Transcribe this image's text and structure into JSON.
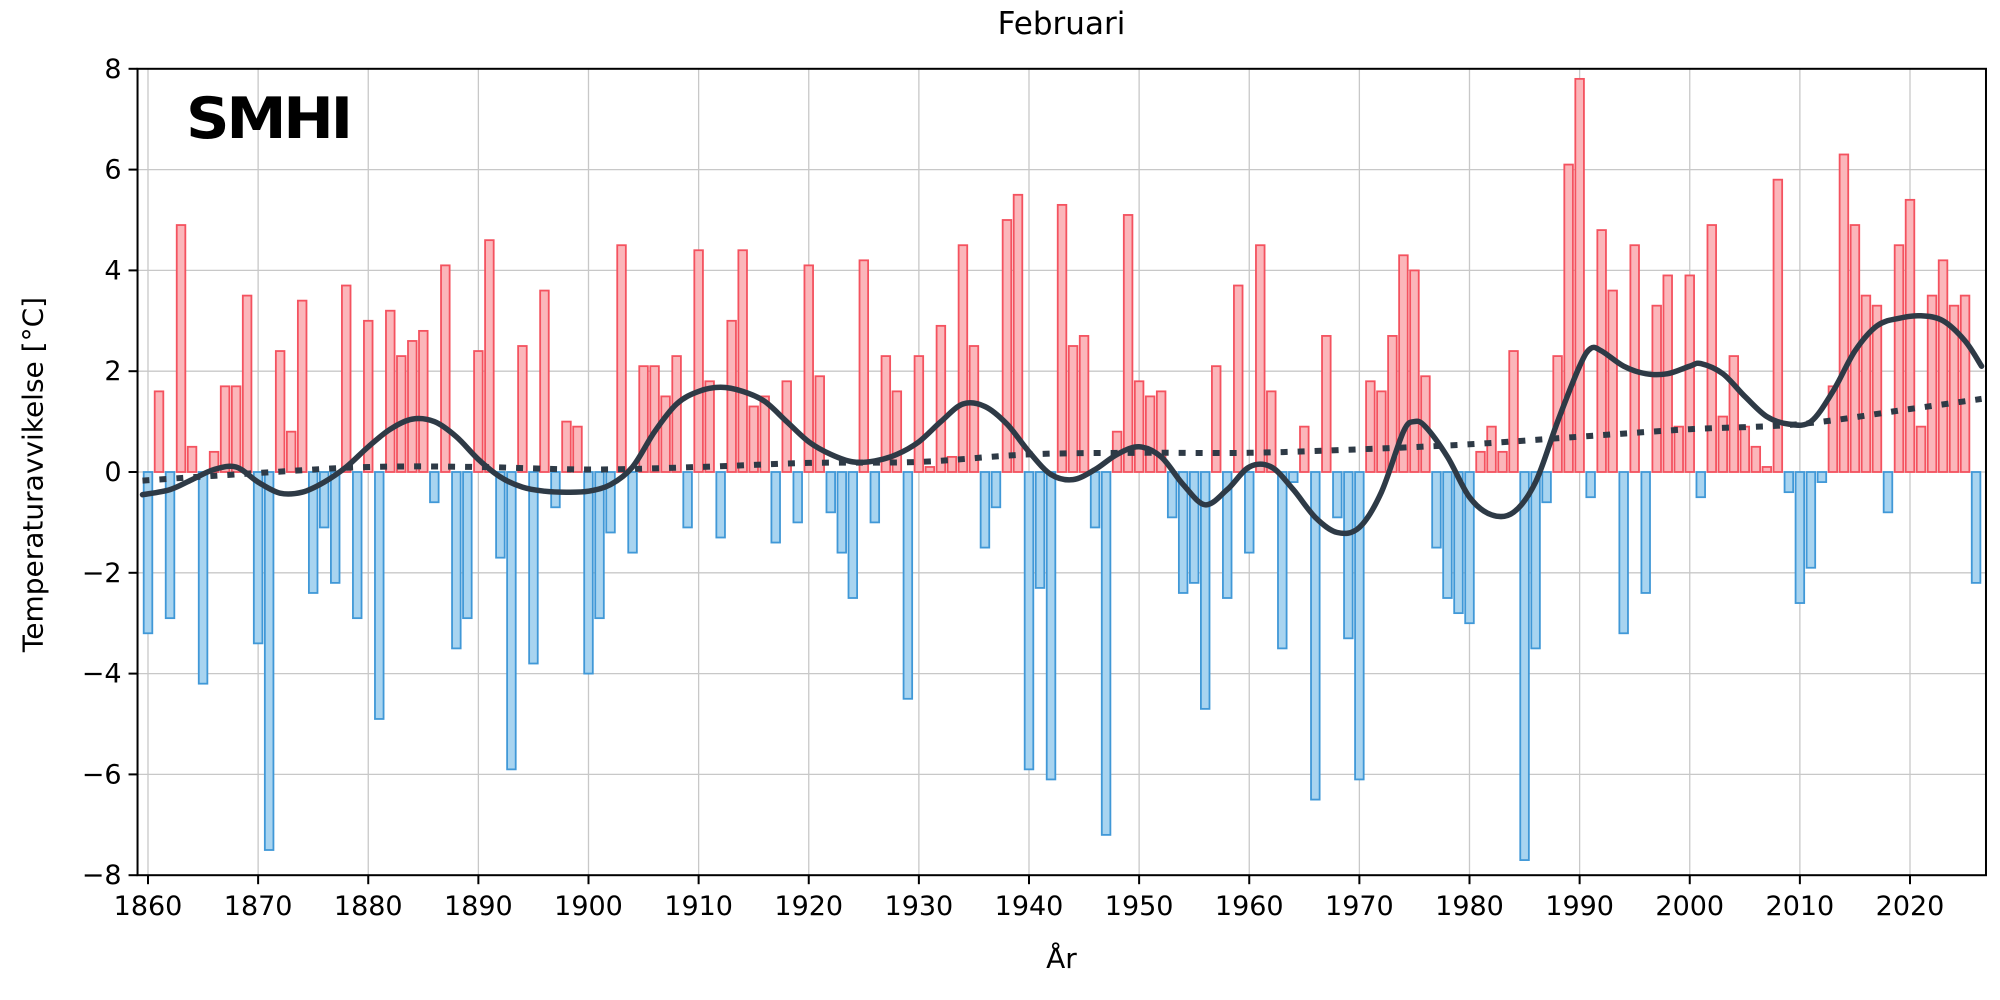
{
  "title": "Februari",
  "logo_text": "SMHI",
  "colors": {
    "positive_fill": "#FBB6BA",
    "positive_edge": "#F4525F",
    "negative_fill": "#A8D4F0",
    "negative_edge": "#4098D7",
    "line": "#2E3A46",
    "grid": "#C8C8C8",
    "spine": "#000000",
    "background": "#FFFFFF"
  },
  "chart_data": {
    "type": "bar",
    "title": "Februari",
    "xlabel": "År",
    "ylabel": "Temperaturavvikelse [°C]",
    "ylim": [
      -8,
      8
    ],
    "xlim": [
      1859.05,
      2026.9
    ],
    "grid": true,
    "yticks": [
      8,
      6,
      4,
      2,
      0,
      -2,
      -4,
      -6,
      -8
    ],
    "xticks": [
      1860,
      1870,
      1880,
      1890,
      1900,
      1910,
      1920,
      1930,
      1940,
      1950,
      1960,
      1970,
      1980,
      1990,
      2000,
      2010,
      2020
    ],
    "start_year": 1860,
    "end_year": 2026,
    "values": [
      -3.2,
      1.6,
      -2.9,
      4.9,
      0.5,
      -4.2,
      0.4,
      1.7,
      1.7,
      3.5,
      -3.4,
      -7.5,
      2.4,
      0.8,
      3.4,
      -2.4,
      -1.1,
      -2.2,
      3.7,
      -2.9,
      3.0,
      -4.9,
      3.2,
      2.3,
      2.6,
      2.8,
      -0.6,
      4.1,
      -3.5,
      -2.9,
      2.4,
      4.6,
      -1.7,
      -5.9,
      2.5,
      -3.8,
      3.6,
      -0.7,
      1.0,
      0.9,
      -4.0,
      -2.9,
      -1.2,
      4.5,
      -1.6,
      2.1,
      2.1,
      1.5,
      2.3,
      -1.1,
      4.4,
      1.8,
      -1.3,
      3.0,
      4.4,
      1.3,
      1.5,
      -1.4,
      1.8,
      -1.0,
      4.1,
      1.9,
      -0.8,
      -1.6,
      -2.5,
      4.2,
      -1.0,
      2.3,
      1.6,
      -4.5,
      2.3,
      0.1,
      2.9,
      0.3,
      4.5,
      2.5,
      -1.5,
      -0.7,
      5.0,
      5.5,
      -5.9,
      -2.3,
      -6.1,
      5.3,
      2.5,
      2.7,
      -1.1,
      -7.2,
      0.8,
      5.1,
      1.8,
      1.5,
      1.6,
      -0.9,
      -2.4,
      -2.2,
      -4.7,
      2.1,
      -2.5,
      3.7,
      -1.6,
      4.5,
      1.6,
      -3.5,
      -0.2,
      0.9,
      -6.5,
      2.7,
      -0.9,
      -3.3,
      -6.1,
      1.8,
      1.6,
      2.7,
      4.3,
      4.0,
      1.9,
      -1.5,
      -2.5,
      -2.8,
      -3.0,
      0.4,
      0.9,
      0.4,
      2.4,
      -7.7,
      -3.5,
      -0.6,
      2.3,
      6.1,
      7.8,
      -0.5,
      4.8,
      3.6,
      -3.2,
      4.5,
      -2.4,
      3.3,
      3.9,
      0.9,
      3.9,
      -0.5,
      4.9,
      1.1,
      2.3,
      0.9,
      0.5,
      0.1,
      5.8,
      -0.4,
      -2.6,
      -1.9,
      -0.2,
      1.7,
      6.3,
      4.9,
      3.5,
      3.3,
      -0.8,
      4.5,
      5.4,
      0.9,
      3.5,
      4.2,
      3.3,
      3.5,
      -2.2
    ],
    "smoothed_line": {
      "name": "smoothed",
      "x": [
        1859.5,
        1862,
        1864,
        1866,
        1868,
        1870,
        1872,
        1874,
        1876,
        1878,
        1880,
        1882,
        1884,
        1886,
        1888,
        1890,
        1892,
        1894,
        1896,
        1898,
        1900,
        1902,
        1904,
        1906,
        1908,
        1910,
        1912,
        1914,
        1916,
        1918,
        1920,
        1922,
        1924,
        1926,
        1928,
        1930,
        1932,
        1934,
        1936,
        1938,
        1940,
        1942,
        1944,
        1946,
        1948,
        1950,
        1952,
        1954,
        1956,
        1958,
        1960,
        1962,
        1964,
        1966,
        1968,
        1970,
        1972,
        1974,
        1975,
        1976,
        1978,
        1980,
        1982,
        1984,
        1986,
        1988,
        1990,
        1991,
        1992,
        1994,
        1996,
        1998,
        2000,
        2001,
        2003,
        2005,
        2007,
        2009,
        2011,
        2013,
        2015,
        2017,
        2019,
        2021,
        2023,
        2025,
        2026.5
      ],
      "y": [
        -0.45,
        -0.35,
        -0.15,
        0.05,
        0.1,
        -0.2,
        -0.42,
        -0.4,
        -0.2,
        0.1,
        0.5,
        0.85,
        1.05,
        1.0,
        0.7,
        0.25,
        -0.1,
        -0.3,
        -0.38,
        -0.4,
        -0.38,
        -0.25,
        0.1,
        0.8,
        1.35,
        1.6,
        1.68,
        1.6,
        1.4,
        1.0,
        0.6,
        0.35,
        0.2,
        0.22,
        0.35,
        0.6,
        1.0,
        1.35,
        1.3,
        0.95,
        0.4,
        -0.05,
        -0.15,
        0.05,
        0.35,
        0.5,
        0.3,
        -0.25,
        -0.65,
        -0.35,
        0.1,
        0.1,
        -0.35,
        -0.9,
        -1.2,
        -1.1,
        -0.4,
        0.8,
        1.0,
        0.9,
        0.3,
        -0.5,
        -0.85,
        -0.8,
        -0.2,
        1.0,
        2.1,
        2.45,
        2.4,
        2.1,
        1.95,
        1.95,
        2.1,
        2.15,
        1.95,
        1.5,
        1.1,
        0.95,
        1.0,
        1.6,
        2.4,
        2.9,
        3.05,
        3.1,
        3.0,
        2.6,
        2.1
      ]
    },
    "trend_line": {
      "name": "trend-dotted",
      "x": [
        1859.5,
        1870,
        1880,
        1890,
        1900,
        1910,
        1920,
        1930,
        1940,
        1950,
        1960,
        1970,
        1980,
        1990,
        2000,
        2010,
        2020,
        2026.5
      ],
      "y": [
        -0.17,
        -0.02,
        0.1,
        0.1,
        0.05,
        0.1,
        0.18,
        0.2,
        0.35,
        0.38,
        0.38,
        0.45,
        0.55,
        0.7,
        0.85,
        0.95,
        1.25,
        1.45
      ]
    }
  }
}
